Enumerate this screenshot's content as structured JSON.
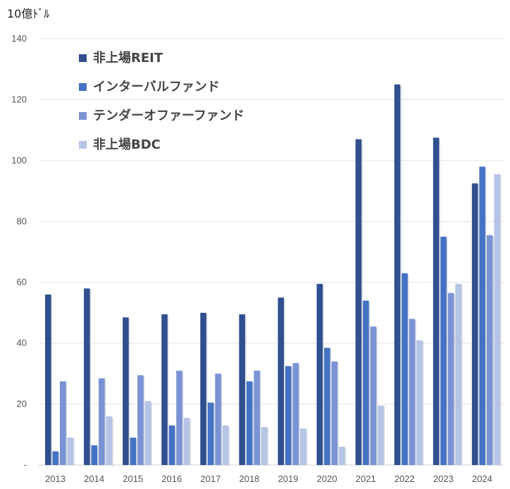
{
  "chart_data": {
    "type": "bar",
    "unit_label": "10億ﾄﾞﾙ",
    "categories": [
      "2013",
      "2014",
      "2015",
      "2016",
      "2017",
      "2018",
      "2019",
      "2020",
      "2021",
      "2022",
      "2023",
      "2024"
    ],
    "series": [
      {
        "name": "非上場REIT",
        "color": "#2f4f8f",
        "values": [
          56,
          58,
          48.5,
          49.5,
          50,
          49.5,
          55,
          59.5,
          107,
          125,
          107.5,
          92.5
        ]
      },
      {
        "name": "インターバルファンド",
        "color": "#4472c4",
        "values": [
          4.5,
          6.5,
          9,
          13,
          20.5,
          27.5,
          32.5,
          38.5,
          54,
          63,
          75,
          98
        ]
      },
      {
        "name": "テンダーオファーファンド",
        "color": "#7a93d4",
        "values": [
          27.5,
          28.5,
          29.5,
          31,
          30,
          31,
          33.5,
          34,
          45.5,
          48,
          56.5,
          75.5
        ]
      },
      {
        "name": "非上場BDC",
        "color": "#b6c4e6",
        "values": [
          9,
          16,
          21,
          15.5,
          13,
          12.5,
          12,
          6,
          19.5,
          41,
          59.5,
          95.5
        ]
      }
    ],
    "y_ticks": [
      "-",
      "20",
      "40",
      "60",
      "80",
      "100",
      "120",
      "140"
    ],
    "ylim": [
      0,
      140
    ],
    "grid": true,
    "legend_position": "top-left"
  }
}
